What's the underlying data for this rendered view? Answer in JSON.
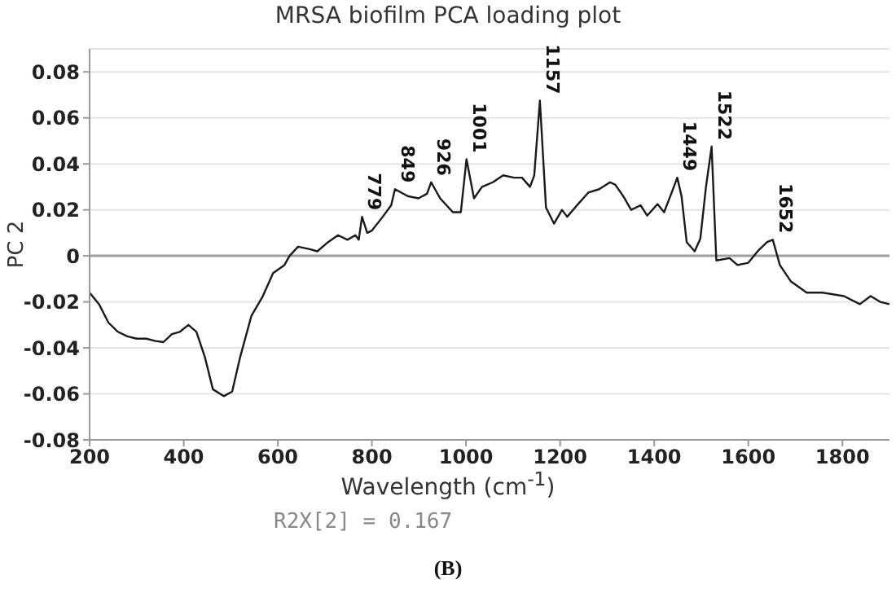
{
  "chart_data": {
    "type": "line",
    "title": "MRSA biofilm PCA loading plot",
    "xlabel": "Wavelength (cm$^{-1}$)",
    "ylabel": "PC 2",
    "xlim": [
      200,
      1900
    ],
    "xticks": [
      200,
      400,
      600,
      800,
      1000,
      1200,
      1400,
      1600,
      1800
    ],
    "ylim": [
      -0.08,
      0.09
    ],
    "yticks": [
      -0.08,
      -0.06,
      -0.04,
      -0.02,
      0,
      0.02,
      0.04,
      0.06,
      0.08
    ],
    "grid": "y",
    "marker": "none",
    "line_style": "solid",
    "ref_lines": [
      {
        "axis": "y",
        "value": 0,
        "color": "#a0a0a0"
      }
    ],
    "series": [
      {
        "color": "#1a1a1a",
        "x": [
          200,
          220,
          240,
          260,
          280,
          300,
          320,
          340,
          357,
          375,
          392,
          410,
          427,
          445,
          462,
          485,
          503,
          520,
          544,
          567,
          590,
          614,
          625,
          643,
          666,
          684,
          707,
          728,
          748,
          765,
          772,
          779,
          790,
          800,
          823,
          841,
          849,
          876,
          899,
          917,
          926,
          945,
          972,
          989,
          1001,
          1017,
          1034,
          1057,
          1079,
          1102,
          1119,
          1136,
          1145,
          1157,
          1170,
          1187,
          1204,
          1215,
          1238,
          1260,
          1283,
          1306,
          1317,
          1334,
          1351,
          1371,
          1385,
          1407,
          1421,
          1438,
          1449,
          1458,
          1469,
          1486,
          1498,
          1510,
          1522,
          1532,
          1560,
          1577,
          1600,
          1622,
          1640,
          1652,
          1667,
          1690,
          1724,
          1758,
          1803,
          1837,
          1860,
          1880,
          1900
        ],
        "values": [
          -0.016,
          -0.021,
          -0.029,
          -0.033,
          -0.035,
          -0.036,
          -0.036,
          -0.037,
          -0.0375,
          -0.034,
          -0.033,
          -0.03,
          -0.033,
          -0.044,
          -0.058,
          -0.061,
          -0.059,
          -0.044,
          -0.026,
          -0.018,
          -0.0075,
          -0.004,
          0,
          0.004,
          0.003,
          0.002,
          0.006,
          0.009,
          0.007,
          0.009,
          0.007,
          0.017,
          0.01,
          0.011,
          0.017,
          0.022,
          0.029,
          0.026,
          0.025,
          0.027,
          0.032,
          0.025,
          0.019,
          0.019,
          0.042,
          0.025,
          0.03,
          0.032,
          0.035,
          0.034,
          0.034,
          0.03,
          0.035,
          0.0675,
          0.021,
          0.014,
          0.02,
          0.017,
          0.0225,
          0.0275,
          0.029,
          0.032,
          0.031,
          0.026,
          0.02,
          0.022,
          0.0175,
          0.0225,
          0.019,
          0.028,
          0.034,
          0.026,
          0.006,
          0.002,
          0.0075,
          0.03,
          0.0475,
          -0.002,
          -0.001,
          -0.004,
          -0.003,
          0.0025,
          0.006,
          0.007,
          -0.004,
          -0.011,
          -0.016,
          -0.016,
          -0.0175,
          -0.021,
          -0.0175,
          -0.02,
          -0.021
        ]
      }
    ],
    "annotations": [
      {
        "text": "779",
        "x": 779,
        "y": 0.017
      },
      {
        "text": "849",
        "x": 849,
        "y": 0.029
      },
      {
        "text": "926",
        "x": 926,
        "y": 0.032
      },
      {
        "text": "1001",
        "x": 1001,
        "y": 0.042
      },
      {
        "text": "1157",
        "x": 1157,
        "y": 0.0675
      },
      {
        "text": "1449",
        "x": 1449,
        "y": 0.034
      },
      {
        "text": "1522",
        "x": 1522,
        "y": 0.0475
      },
      {
        "text": "1652",
        "x": 1652,
        "y": 0.007
      },
      "R2X[2] = 0.167",
      "(B)"
    ]
  }
}
